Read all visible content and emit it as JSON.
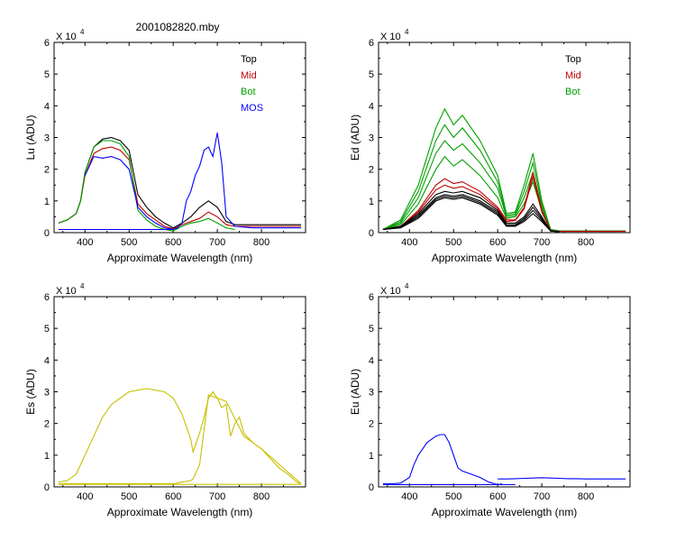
{
  "title": "2001082820.mby",
  "colors": {
    "Top": "#000000",
    "Mid": "#c00000",
    "Bot": "#00a000",
    "MOS": "#0000ff",
    "Es": "#c8c000",
    "Eu": "#0000ff"
  },
  "chart_data": [
    {
      "type": "line",
      "id": "lu",
      "xlabel": "Approximate Wavelength (nm)",
      "ylabel": "Lu (ADU)",
      "scale_label": "X 10",
      "scale_exp": "4",
      "xlim": [
        330,
        900
      ],
      "ylim": [
        0,
        60000
      ],
      "xticks": [
        400,
        500,
        600,
        700,
        800
      ],
      "yticks": [
        0,
        10000,
        20000,
        30000,
        40000,
        50000,
        60000
      ],
      "ytick_labels": [
        "0",
        "1",
        "2",
        "3",
        "4",
        "5",
        "6"
      ],
      "legend": [
        "Top",
        "Mid",
        "Bot",
        "MOS"
      ],
      "legend_position": "top-right",
      "series": [
        {
          "name": "Top",
          "color": "#000000",
          "x": [
            340,
            360,
            380,
            390,
            400,
            420,
            440,
            460,
            480,
            500,
            520,
            540,
            560,
            580,
            600,
            620,
            640,
            660,
            680,
            700,
            720,
            740,
            780,
            820,
            860,
            890
          ],
          "y": [
            3000,
            4000,
            6000,
            10000,
            19000,
            27000,
            29500,
            30000,
            29000,
            26000,
            12000,
            8000,
            5000,
            3000,
            1500,
            3000,
            5000,
            8000,
            10000,
            8000,
            3500,
            2500,
            2500,
            2500,
            2500,
            2500
          ]
        },
        {
          "name": "Mid",
          "color": "#c00000",
          "x": [
            340,
            360,
            380,
            390,
            400,
            420,
            440,
            460,
            480,
            500,
            520,
            540,
            560,
            580,
            600,
            620,
            640,
            660,
            680,
            700,
            720,
            740,
            780,
            820,
            860,
            890
          ],
          "y": [
            3000,
            4000,
            6000,
            10000,
            18000,
            25000,
            26500,
            27000,
            26000,
            23000,
            9000,
            6000,
            4000,
            2000,
            1200,
            2500,
            3500,
            4500,
            6500,
            5000,
            2500,
            2000,
            2000,
            2000,
            2000,
            2000
          ]
        },
        {
          "name": "Bot",
          "color": "#00a000",
          "x": [
            340,
            360,
            380,
            390,
            400,
            420,
            440,
            460,
            480,
            500,
            520,
            540,
            560,
            580,
            600,
            620,
            640,
            660,
            680,
            700,
            720,
            740
          ],
          "y": [
            3000,
            4000,
            6000,
            10000,
            19000,
            27000,
            29000,
            29000,
            28000,
            24000,
            7000,
            4000,
            2000,
            1000,
            500,
            2000,
            3000,
            3500,
            4500,
            3000,
            1500,
            1000
          ]
        },
        {
          "name": "MOS",
          "color": "#0000ff",
          "x": [
            340,
            360,
            380,
            390,
            400,
            420,
            440,
            460,
            480,
            500,
            520,
            540,
            560,
            580,
            600,
            610,
            620,
            630,
            640,
            650,
            660,
            670,
            680,
            690,
            700,
            710,
            720,
            740,
            780,
            820,
            860,
            890
          ],
          "y": [
            1000,
            1000,
            1000,
            1000,
            1000,
            1000,
            1000,
            1000,
            1000,
            1000,
            1000,
            1000,
            1000,
            1000,
            1000,
            1500,
            3000,
            10000,
            13000,
            18000,
            21000,
            26000,
            27000,
            24000,
            31500,
            22000,
            5000,
            2000,
            1500,
            1500,
            1500,
            1500
          ]
        },
        {
          "name": "",
          "color": "#0000ff",
          "x": [
            400,
            420,
            440,
            460,
            480,
            500,
            520,
            540,
            560,
            580,
            600
          ],
          "y": [
            18000,
            24000,
            23500,
            24000,
            23000,
            20000,
            8000,
            5000,
            3000,
            1500,
            1000
          ]
        }
      ]
    },
    {
      "type": "line",
      "id": "ed",
      "xlabel": "Approximate Wavelength (nm)",
      "ylabel": "Ed  (ADU)",
      "scale_label": "X 10",
      "scale_exp": "4",
      "xlim": [
        330,
        900
      ],
      "ylim": [
        0,
        60000
      ],
      "xticks": [
        400,
        500,
        600,
        700,
        800
      ],
      "yticks": [
        0,
        10000,
        20000,
        30000,
        40000,
        50000,
        60000
      ],
      "ytick_labels": [
        "0",
        "1",
        "2",
        "3",
        "4",
        "5",
        "6"
      ],
      "legend": [
        "Top",
        "Mid",
        "Bot"
      ],
      "legend_position": "top-right",
      "series": [
        {
          "name": "Bot",
          "color": "#00a000",
          "x": [
            340,
            380,
            420,
            460,
            480,
            500,
            520,
            560,
            600,
            620,
            640,
            660,
            680,
            700,
            720,
            740,
            800,
            890
          ],
          "y": [
            1000,
            4000,
            15000,
            33000,
            39000,
            34000,
            37000,
            29000,
            18000,
            6000,
            6500,
            15000,
            25000,
            10000,
            1000,
            500,
            500,
            500
          ]
        },
        {
          "name": "",
          "color": "#00a000",
          "x": [
            340,
            380,
            420,
            460,
            480,
            500,
            520,
            560,
            600,
            620,
            640,
            660,
            680,
            700,
            720,
            740,
            800,
            890
          ],
          "y": [
            1000,
            3500,
            13000,
            29000,
            34000,
            30000,
            33000,
            26000,
            16000,
            5500,
            6000,
            13000,
            22000,
            9000,
            1000,
            500,
            500,
            500
          ]
        },
        {
          "name": "",
          "color": "#00a000",
          "x": [
            340,
            380,
            420,
            460,
            480,
            500,
            520,
            560,
            600,
            620,
            640,
            660,
            680,
            700,
            720,
            740,
            800,
            890
          ],
          "y": [
            1000,
            3000,
            11000,
            25000,
            29000,
            26000,
            28000,
            22000,
            14000,
            5000,
            5500,
            11000,
            19000,
            8000,
            800,
            500,
            500,
            500
          ]
        },
        {
          "name": "",
          "color": "#00a000",
          "x": [
            340,
            380,
            420,
            460,
            480,
            500,
            520,
            560,
            600,
            620,
            640,
            660,
            680,
            700,
            720,
            740,
            800,
            890
          ],
          "y": [
            1000,
            2500,
            9000,
            20000,
            24000,
            21000,
            23000,
            18000,
            11000,
            4500,
            5000,
            9000,
            16000,
            7000,
            800,
            500,
            500,
            500
          ]
        },
        {
          "name": "Mid",
          "color": "#c00000",
          "x": [
            340,
            380,
            420,
            460,
            480,
            500,
            520,
            560,
            600,
            620,
            640,
            660,
            680,
            700,
            720,
            740,
            800,
            890
          ],
          "y": [
            1000,
            2000,
            7000,
            15000,
            17000,
            15500,
            16000,
            13000,
            8000,
            4000,
            4000,
            8000,
            19000,
            7000,
            600,
            400,
            400,
            400
          ]
        },
        {
          "name": "",
          "color": "#c00000",
          "x": [
            340,
            380,
            420,
            460,
            480,
            500,
            520,
            560,
            600,
            620,
            640,
            660,
            680,
            700,
            720,
            740,
            800,
            890
          ],
          "y": [
            1000,
            2000,
            6500,
            13500,
            15000,
            14000,
            14500,
            12000,
            7500,
            3500,
            3800,
            7500,
            17500,
            6500,
            600,
            400,
            400,
            400
          ]
        },
        {
          "name": "Top",
          "color": "#000000",
          "x": [
            340,
            380,
            420,
            460,
            480,
            500,
            520,
            560,
            600,
            620,
            640,
            660,
            680,
            700,
            720,
            740
          ],
          "y": [
            1000,
            2000,
            6000,
            12000,
            13000,
            12500,
            13000,
            11000,
            7000,
            3000,
            3000,
            5000,
            9000,
            5000,
            500,
            300
          ]
        },
        {
          "name": "",
          "color": "#000000",
          "x": [
            340,
            380,
            420,
            460,
            480,
            500,
            520,
            560,
            600,
            620,
            640,
            660,
            680,
            700,
            720,
            740
          ],
          "y": [
            1000,
            1800,
            5500,
            11000,
            12000,
            11500,
            12000,
            10000,
            6500,
            2500,
            2500,
            4500,
            8000,
            4500,
            500,
            300
          ]
        },
        {
          "name": "",
          "color": "#000000",
          "x": [
            340,
            380,
            420,
            460,
            480,
            500,
            520,
            560,
            600,
            620,
            640,
            660,
            680,
            700,
            720,
            740
          ],
          "y": [
            1000,
            1600,
            5000,
            10500,
            11500,
            11000,
            11500,
            9500,
            6000,
            2200,
            2200,
            4000,
            7000,
            4000,
            500,
            300
          ]
        },
        {
          "name": "",
          "color": "#000000",
          "x": [
            340,
            380,
            420,
            460,
            480,
            500,
            520,
            560,
            600,
            620,
            640,
            660,
            680,
            700,
            720,
            740
          ],
          "y": [
            1000,
            1500,
            4500,
            10000,
            11000,
            10500,
            11000,
            9000,
            5500,
            2000,
            2000,
            3500,
            6000,
            3500,
            500,
            300
          ]
        }
      ]
    },
    {
      "type": "line",
      "id": "es",
      "xlabel": "Approximate Wavelength (nm)",
      "ylabel": "Es  (ADU)",
      "scale_label": "X 10",
      "scale_exp": "4",
      "xlim": [
        330,
        900
      ],
      "ylim": [
        0,
        60000
      ],
      "xticks": [
        400,
        500,
        600,
        700,
        800
      ],
      "yticks": [
        0,
        10000,
        20000,
        30000,
        40000,
        50000,
        60000
      ],
      "ytick_labels": [
        "0",
        "1",
        "2",
        "3",
        "4",
        "5",
        "6"
      ],
      "series": [
        {
          "name": "",
          "color": "#c8c000",
          "x": [
            340,
            360,
            380,
            400,
            420,
            440,
            460,
            480,
            500,
            520,
            540,
            560,
            580,
            600,
            620,
            640,
            645,
            660,
            670,
            680,
            690,
            700,
            710,
            720,
            730,
            740,
            750,
            760,
            780,
            800,
            820,
            840,
            860,
            880,
            890
          ],
          "y": [
            1500,
            2000,
            4000,
            10000,
            16000,
            22000,
            26000,
            28000,
            30000,
            30500,
            31000,
            30500,
            30000,
            28000,
            23000,
            15000,
            11000,
            17000,
            22000,
            28000,
            30000,
            28000,
            25000,
            26000,
            16000,
            20000,
            22000,
            17000,
            14000,
            12000,
            9000,
            6000,
            4000,
            1500,
            1000
          ]
        },
        {
          "name": "",
          "color": "#c8c000",
          "x": [
            340,
            400,
            500,
            600,
            620,
            640,
            645,
            660,
            680,
            700,
            720,
            760,
            800,
            890
          ],
          "y": [
            1000,
            1000,
            1000,
            1000,
            1500,
            2000,
            2500,
            7000,
            29000,
            28000,
            27000,
            16000,
            12000,
            1000
          ]
        },
        {
          "name": "",
          "color": "#c8c000",
          "x": [
            340,
            400,
            500,
            600,
            700,
            800,
            890
          ],
          "y": [
            800,
            800,
            800,
            800,
            800,
            800,
            800
          ]
        }
      ]
    },
    {
      "type": "line",
      "id": "eu",
      "xlabel": "Approximate Wavelength (nm)",
      "ylabel": "Eu  (ADU)",
      "scale_label": "X 10",
      "scale_exp": "4",
      "xlim": [
        330,
        900
      ],
      "ylim": [
        0,
        60000
      ],
      "xticks": [
        400,
        500,
        600,
        700,
        800
      ],
      "yticks": [
        0,
        10000,
        20000,
        30000,
        40000,
        50000,
        60000
      ],
      "ytick_labels": [
        "0",
        "1",
        "2",
        "3",
        "4",
        "5",
        "6"
      ],
      "series": [
        {
          "name": "",
          "color": "#0000ff",
          "x": [
            340,
            360,
            380,
            400,
            410,
            420,
            440,
            460,
            470,
            480,
            490,
            500,
            510,
            520,
            540,
            560,
            580,
            600,
            610
          ],
          "y": [
            1000,
            1000,
            1200,
            3000,
            7000,
            10000,
            14000,
            16000,
            16500,
            16500,
            14000,
            10000,
            6000,
            5000,
            4000,
            3000,
            1500,
            700,
            1000
          ]
        },
        {
          "name": "",
          "color": "#0000ff",
          "x": [
            600,
            620,
            640,
            660,
            680,
            700,
            720,
            740,
            760,
            780,
            800,
            820,
            840,
            860,
            890
          ],
          "y": [
            2500,
            2500,
            2600,
            2700,
            2800,
            2900,
            2800,
            2700,
            2600,
            2600,
            2500,
            2500,
            2500,
            2500,
            2500
          ]
        },
        {
          "name": "",
          "color": "#0000ff",
          "x": [
            340,
            400,
            500,
            600,
            640
          ],
          "y": [
            700,
            700,
            700,
            700,
            700
          ]
        }
      ]
    }
  ]
}
